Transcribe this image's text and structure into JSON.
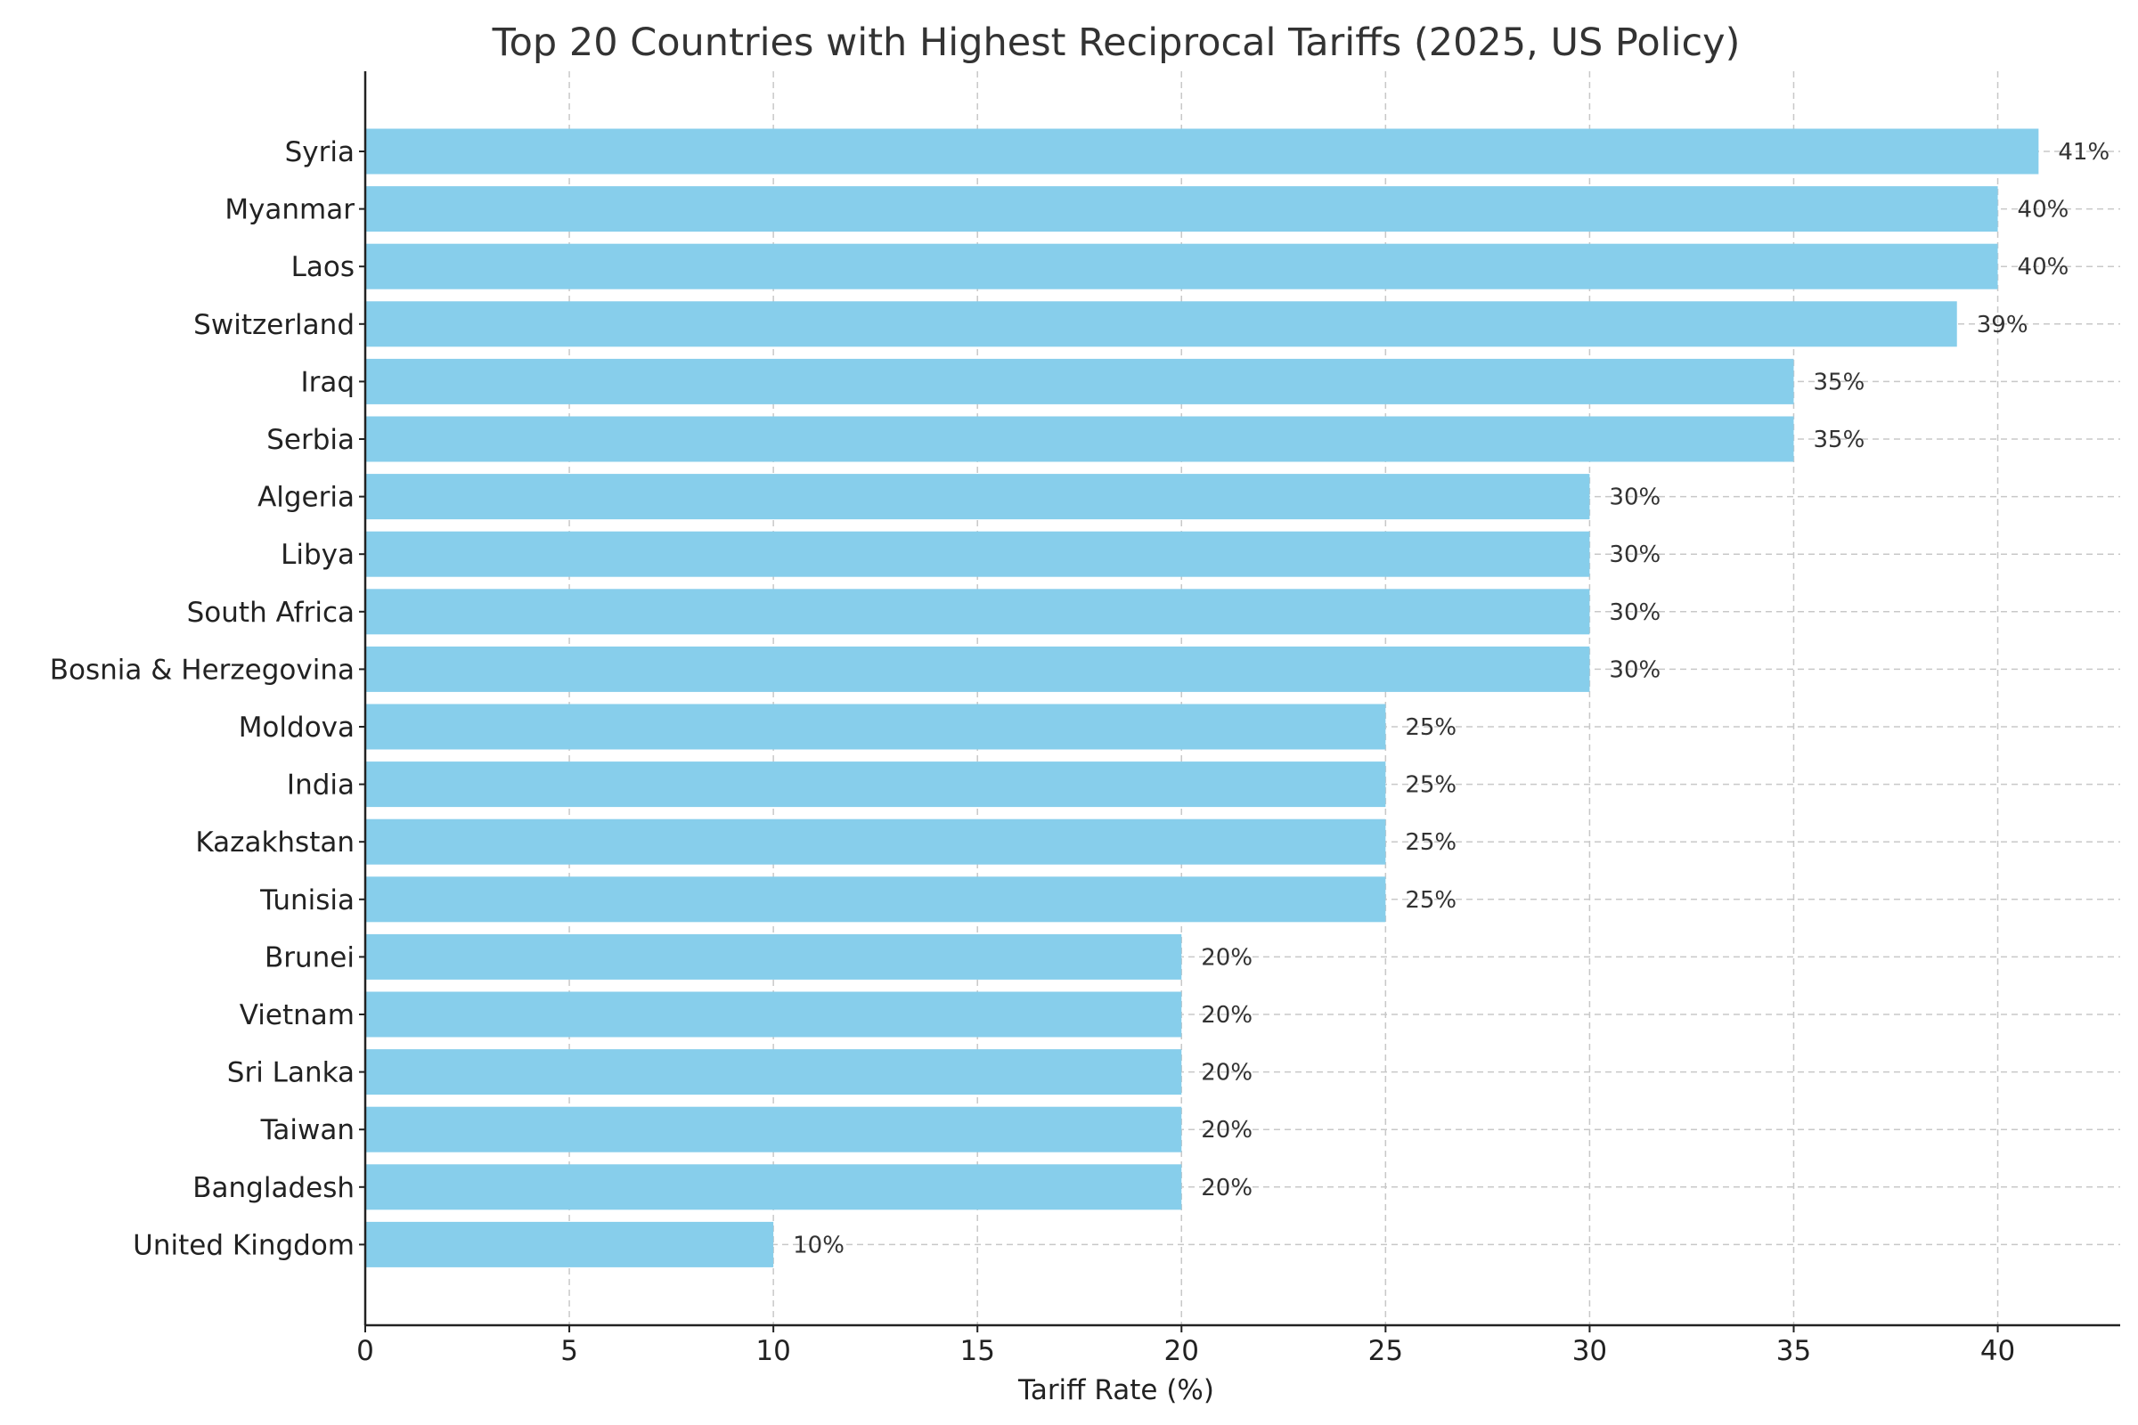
{
  "chart_data": {
    "type": "bar",
    "orientation": "horizontal",
    "title": "Top 20 Countries with Highest Reciprocal Tariffs (2025, US Policy)",
    "xlabel": "Tariff Rate (%)",
    "ylabel": "",
    "categories": [
      "Syria",
      "Myanmar",
      "Laos",
      "Switzerland",
      "Iraq",
      "Serbia",
      "Algeria",
      "Libya",
      "South Africa",
      "Bosnia & Herzegovina",
      "Moldova",
      "India",
      "Kazakhstan",
      "Tunisia",
      "Brunei",
      "Vietnam",
      "Sri Lanka",
      "Taiwan",
      "Bangladesh",
      "United Kingdom"
    ],
    "values": [
      41,
      40,
      40,
      39,
      35,
      35,
      30,
      30,
      30,
      30,
      25,
      25,
      25,
      25,
      20,
      20,
      20,
      20,
      20,
      10
    ],
    "value_labels": [
      "41%",
      "40%",
      "40%",
      "39%",
      "35%",
      "35%",
      "30%",
      "30%",
      "30%",
      "30%",
      "25%",
      "25%",
      "25%",
      "25%",
      "20%",
      "20%",
      "20%",
      "20%",
      "20%",
      "10%"
    ],
    "xticks": [
      0,
      5,
      10,
      15,
      20,
      25,
      30,
      35,
      40
    ],
    "xtick_labels": [
      "0",
      "5",
      "10",
      "15",
      "20",
      "25",
      "30",
      "35",
      "40"
    ],
    "xlim": [
      0,
      43
    ],
    "grid": true,
    "bar_color": "#87CEEB"
  }
}
